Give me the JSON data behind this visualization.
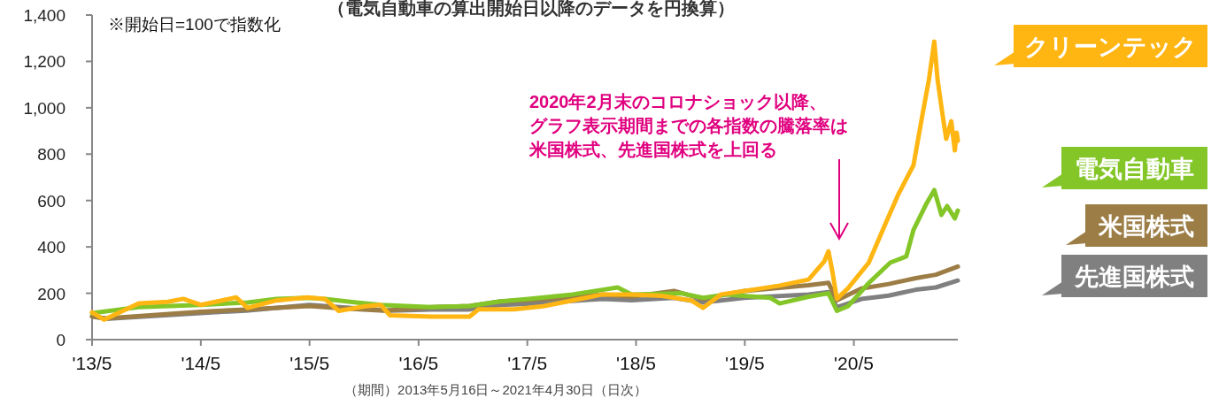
{
  "chart_data": {
    "type": "line",
    "subtitle": "（電気自動車の算出開始日以降のデータを円換算）",
    "annotations": [
      "※開始日=100で指数化",
      "2020年2月末のコロナショック以降、",
      "グラフ表示期間までの各指数の騰落率は",
      "米国株式、先進国株式を上回る",
      "（期間）2013年5月16日～2021年4月30日（日次）"
    ],
    "xlim": [
      "2013-05-16",
      "2021-04-30"
    ],
    "xticks": [
      {
        "value": "2013-05-16",
        "label": "'13/5"
      },
      {
        "value": "2014-05-16",
        "label": "'14/5"
      },
      {
        "value": "2015-05-16",
        "label": "'15/5"
      },
      {
        "value": "2016-05-16",
        "label": "'16/5"
      },
      {
        "value": "2017-05-16",
        "label": "'17/5"
      },
      {
        "value": "2018-05-16",
        "label": "'18/5"
      },
      {
        "value": "2019-05-16",
        "label": "'19/5"
      },
      {
        "value": "2020-05-16",
        "label": "'20/5"
      }
    ],
    "ylim": [
      0,
      1400
    ],
    "yticks": [
      {
        "value": 0,
        "label": "0"
      },
      {
        "value": 200,
        "label": "200"
      },
      {
        "value": 400,
        "label": "400"
      },
      {
        "value": 600,
        "label": "600"
      },
      {
        "value": 800,
        "label": "800"
      },
      {
        "value": 1000,
        "label": "1,000"
      },
      {
        "value": 1200,
        "label": "1,200"
      },
      {
        "value": 1400,
        "label": "1,400"
      }
    ],
    "grid": false,
    "legend": "right",
    "marker": "none",
    "line_style": "solid",
    "series": [
      {
        "name": "先進国株式",
        "color": "#808080",
        "x": [
          "2013-05-16",
          "2013-07-01",
          "2014-05-16",
          "2014-10-15",
          "2015-05-16",
          "2015-08-25",
          "2016-02-10",
          "2016-06-28",
          "2016-11-03",
          "2017-02-15",
          "2017-05-20",
          "2018-01-23",
          "2018-05-01",
          "2018-09-20",
          "2018-12-27",
          "2019-05-15",
          "2019-12-16",
          "2020-02-21",
          "2020-03-20",
          "2020-06-10",
          "2020-09-10",
          "2020-12-10",
          "2021-02-15",
          "2021-04-30"
        ],
        "values": [
          100,
          90,
          115,
          125,
          150,
          140,
          125,
          130,
          130,
          150,
          155,
          175,
          170,
          180,
          160,
          180,
          195,
          205,
          140,
          175,
          190,
          215,
          225,
          255
        ]
      },
      {
        "name": "米国株式",
        "color": "#9c7d45",
        "x": [
          "2013-05-16",
          "2013-07-01",
          "2014-05-16",
          "2014-10-15",
          "2015-05-16",
          "2015-08-25",
          "2016-01-20",
          "2016-06-28",
          "2016-11-03",
          "2017-02-15",
          "2017-05-20",
          "2018-01-23",
          "2018-05-01",
          "2018-09-20",
          "2018-12-27",
          "2019-05-15",
          "2019-12-16",
          "2020-02-21",
          "2020-03-20",
          "2020-06-10",
          "2020-09-10",
          "2020-12-10",
          "2021-02-15",
          "2021-04-30"
        ],
        "values": [
          100,
          92,
          120,
          130,
          145,
          135,
          125,
          140,
          145,
          165,
          170,
          195,
          185,
          210,
          175,
          210,
          235,
          245,
          170,
          220,
          240,
          265,
          280,
          315
        ]
      },
      {
        "name": "電気自動車",
        "color": "#84c628",
        "x": [
          "2013-05-16",
          "2013-10-20",
          "2014-05-16",
          "2014-10-20",
          "2015-01-25",
          "2015-05-08",
          "2015-07-06",
          "2015-10-20",
          "2016-01-10",
          "2016-06-28",
          "2016-11-03",
          "2017-02-15",
          "2017-05-20",
          "2017-10-15",
          "2018-01-23",
          "2018-03-15",
          "2018-05-01",
          "2018-10-15",
          "2018-12-27",
          "2019-03-15",
          "2019-08-10",
          "2019-09-10",
          "2019-12-16",
          "2020-02-21",
          "2020-03-20",
          "2020-04-26",
          "2020-07-05",
          "2020-09-15",
          "2020-11-08",
          "2020-12-02",
          "2021-01-15",
          "2021-02-10",
          "2021-03-06",
          "2021-03-25",
          "2021-04-20",
          "2021-04-30"
        ],
        "values": [
          115,
          140,
          150,
          160,
          175,
          180,
          175,
          160,
          150,
          140,
          145,
          165,
          175,
          195,
          215,
          225,
          195,
          200,
          180,
          195,
          180,
          156,
          185,
          200,
          124,
          144,
          244,
          332,
          359,
          473,
          588,
          645,
          538,
          576,
          523,
          557
        ]
      },
      {
        "name": "クリーンテック",
        "color": "#ffb612",
        "x": [
          "2013-05-16",
          "2013-06-25",
          "2013-10-20",
          "2014-01-25",
          "2014-03-18",
          "2014-05-16",
          "2014-09-12",
          "2014-10-20",
          "2015-01-25",
          "2015-05-08",
          "2015-07-06",
          "2015-08-22",
          "2015-11-20",
          "2016-01-10",
          "2016-02-10",
          "2016-06-28",
          "2016-11-03",
          "2016-12-03",
          "2017-04-01",
          "2017-07-08",
          "2017-12-05",
          "2018-01-23",
          "2018-05-01",
          "2018-08-10",
          "2018-11-17",
          "2018-12-27",
          "2019-02-25",
          "2019-06-05",
          "2019-09-10",
          "2019-12-16",
          "2020-02-06",
          "2020-02-21",
          "2020-03-06",
          "2020-03-20",
          "2020-04-26",
          "2020-07-05",
          "2020-08-25",
          "2020-10-12",
          "2020-12-02",
          "2021-01-01",
          "2021-01-23",
          "2021-02-10",
          "2021-02-21",
          "2021-03-10",
          "2021-03-22",
          "2021-04-08",
          "2021-04-20",
          "2021-04-26",
          "2021-04-30"
        ],
        "values": [
          118,
          86,
          156,
          163,
          176,
          150,
          182,
          137,
          169,
          182,
          176,
          124,
          144,
          150,
          105,
          99,
          99,
          131,
          131,
          144,
          182,
          195,
          195,
          189,
          169,
          137,
          195,
          214,
          233,
          259,
          336,
          381,
          285,
          176,
          221,
          332,
          485,
          626,
          752,
          969,
          1122,
          1286,
          1122,
          969,
          866,
          942,
          816,
          893,
          857
        ]
      }
    ]
  }
}
